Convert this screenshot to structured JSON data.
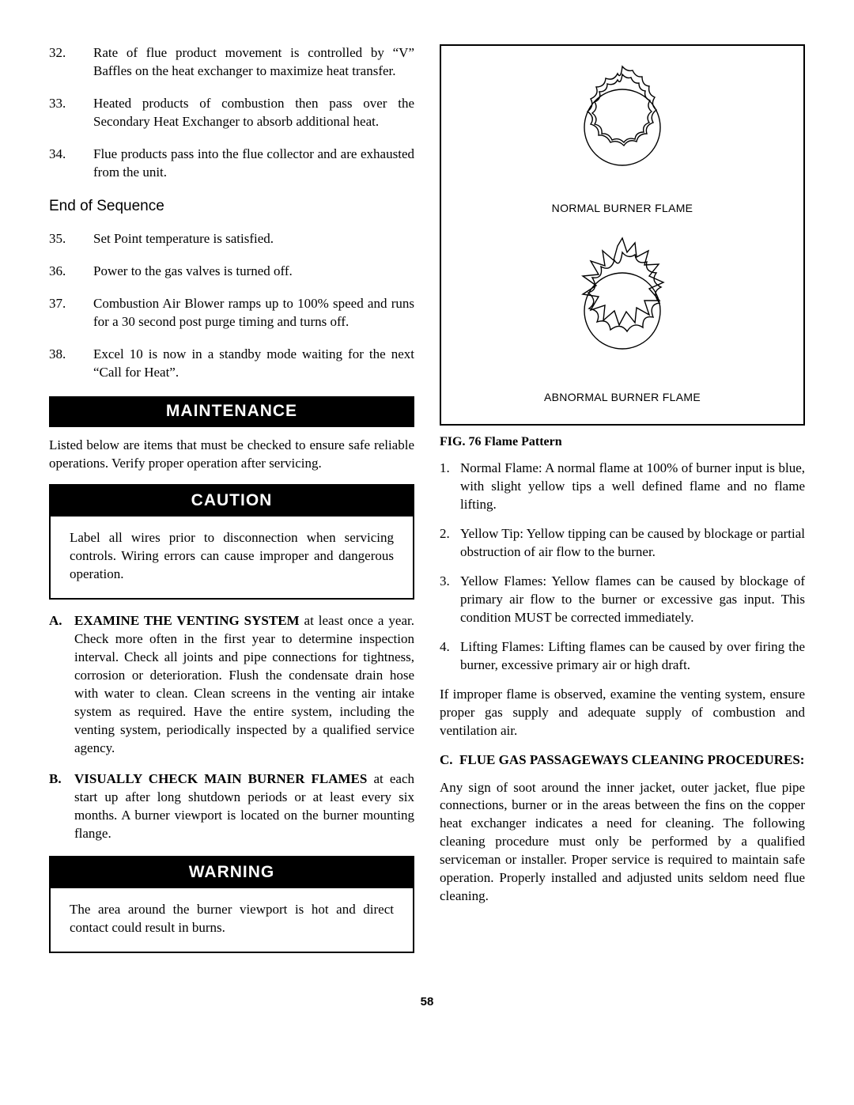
{
  "left": {
    "seq": [
      {
        "n": "32.",
        "t": "Rate of flue product movement is controlled by “V”  Baffles on the heat exchanger to maximize heat transfer."
      },
      {
        "n": "33.",
        "t": "Heated products of combustion then pass over the Secondary Heat Exchanger to absorb additional heat."
      },
      {
        "n": "34.",
        "t": "Flue products pass into the flue collector and are exhausted from the unit."
      }
    ],
    "end_heading": "End of Sequence",
    "end_seq": [
      {
        "n": "35.",
        "t": "Set Point temperature is satisfied."
      },
      {
        "n": "36.",
        "t": "Power to the gas valves is turned off."
      },
      {
        "n": "37.",
        "t": "Combustion Air Blower ramps up to 100% speed and  runs for a 30 second post purge timing and turns off."
      },
      {
        "n": "38.",
        "t": "Excel 10 is now in a standby mode waiting for the next “Call for Heat”."
      }
    ],
    "maintenance_bar": "MAINTENANCE",
    "maintenance_intro": "Listed below are items that must be checked to ensure safe reliable operations.  Verify proper operation after servicing.",
    "caution_bar": "CAUTION",
    "caution_body": "Label all wires prior to disconnection when servicing controls.  Wiring errors can cause improper and dangerous operation.",
    "items": [
      {
        "l": "A.",
        "lead": "EXAMINE THE VENTING SYSTEM",
        "rest": " at least once a  year. Check more often in the first year to determine inspection interval. Check all joints and pipe connections for tightness, corrosion or deterioration. Flush the condensate drain hose with water to clean. Clean screens in the venting air intake system as required.  Have the entire system, including the venting system, periodically inspected by a qualified service agency."
      },
      {
        "l": "B.",
        "lead": "VISUALLY CHECK MAIN BURNER FLAMES",
        "rest": " at each start up after long shutdown periods or at least every six months.  A burner viewport is located on the burner mounting flange."
      }
    ],
    "warning_bar": "WARNING",
    "warning_body": "The area around the burner viewport is hot and direct contact could result in burns."
  },
  "right": {
    "fig": {
      "normal_caption": "NORMAL BURNER FLAME",
      "abnormal_caption": "ABNORMAL BURNER FLAME",
      "title": "FIG. 76   Flame Pattern"
    },
    "flame_items": [
      {
        "n": "1.",
        "t": "Normal Flame: A normal flame at 100% of burner input is blue, with slight yellow tips a well defined flame and no flame lifting."
      },
      {
        "n": "2.",
        "t": "Yellow Tip: Yellow tipping can be caused by blockage or partial obstruction of air flow to the burner."
      },
      {
        "n": "3.",
        "t": "Yellow Flames: Yellow flames can be caused by blockage of primary air flow to the burner or excessive gas input.  This condition MUST be corrected immediately."
      },
      {
        "n": "4.",
        "t": "Lifting Flames: Lifting flames can be caused by over firing the burner, excessive primary  air or high draft."
      }
    ],
    "flame_outro": "If improper flame is observed, examine the venting system, ensure proper gas supply and adequate supply of combustion and ventilation air.",
    "proc_letter": "C",
    "proc_head": "FLUE GAS PASSAGEWAYS CLEANING PROCEDURES:",
    "proc_body": "Any sign of soot around the inner jacket, outer jacket, flue pipe connections, burner or in the areas between the fins on the copper heat exchanger indicates a need for cleaning. The following cleaning procedure must only be performed by a qualified serviceman or installer. Proper service is required to maintain safe operation.  Properly installed and adjusted units seldom need flue cleaning."
  },
  "page_number": "58"
}
